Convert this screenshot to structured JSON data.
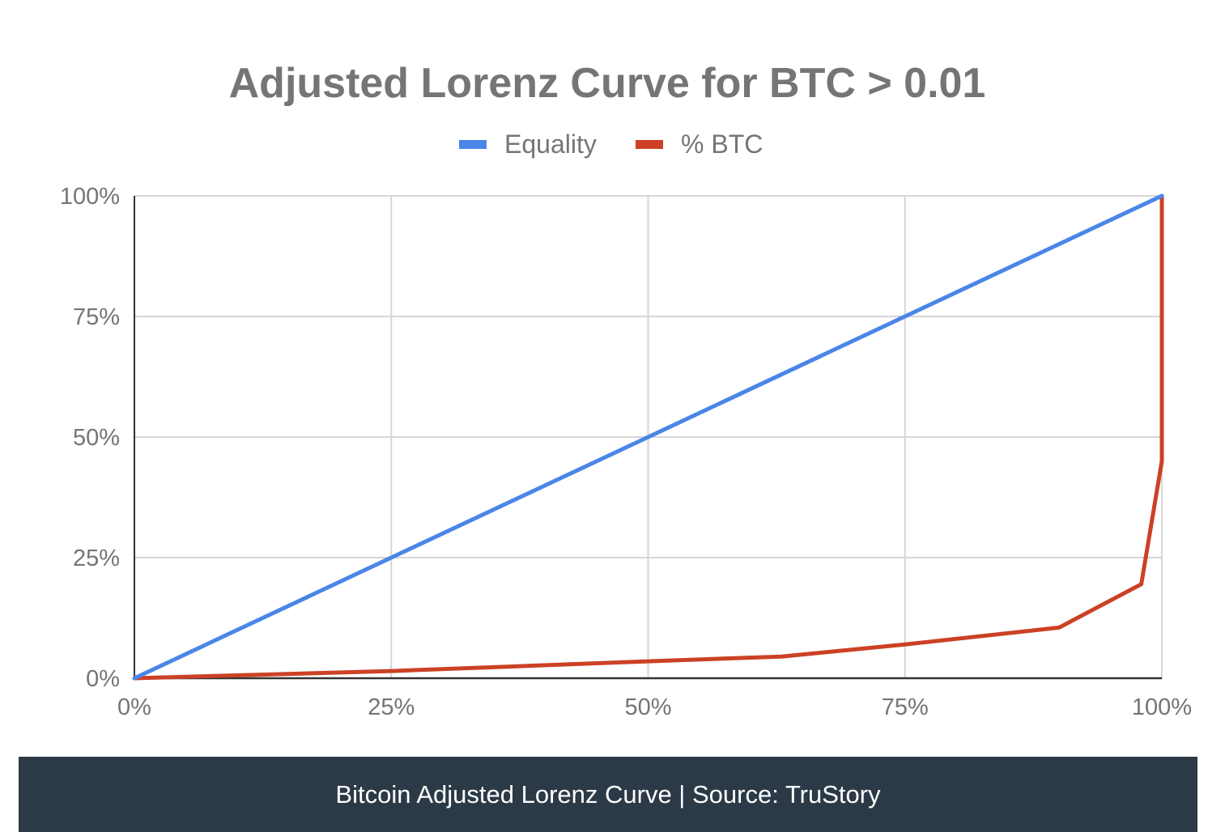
{
  "chart_data": {
    "type": "line",
    "title": "Adjusted Lorenz Curve for BTC > 0.01",
    "xlabel": "",
    "ylabel": "",
    "xlim": [
      0,
      100
    ],
    "ylim": [
      0,
      100
    ],
    "x_ticks": [
      "0%",
      "25%",
      "50%",
      "75%",
      "100%"
    ],
    "y_ticks": [
      "0%",
      "25%",
      "50%",
      "75%",
      "100%"
    ],
    "x_tick_values": [
      0,
      25,
      50,
      75,
      100
    ],
    "y_tick_values": [
      0,
      25,
      50,
      75,
      100
    ],
    "grid": true,
    "legend_position": "top-center",
    "series": [
      {
        "name": "Equality",
        "color": "#4a86e8",
        "x": [
          0,
          100
        ],
        "y": [
          0,
          100
        ]
      },
      {
        "name": "% BTC",
        "color": "#cc4125",
        "x": [
          0,
          25,
          50,
          63,
          75,
          90,
          98,
          100,
          100
        ],
        "y": [
          0,
          1.5,
          3.5,
          4.5,
          7,
          10.5,
          19.5,
          45,
          100
        ]
      }
    ]
  },
  "caption": "Bitcoin Adjusted Lorenz Curve | Source: TruStory"
}
